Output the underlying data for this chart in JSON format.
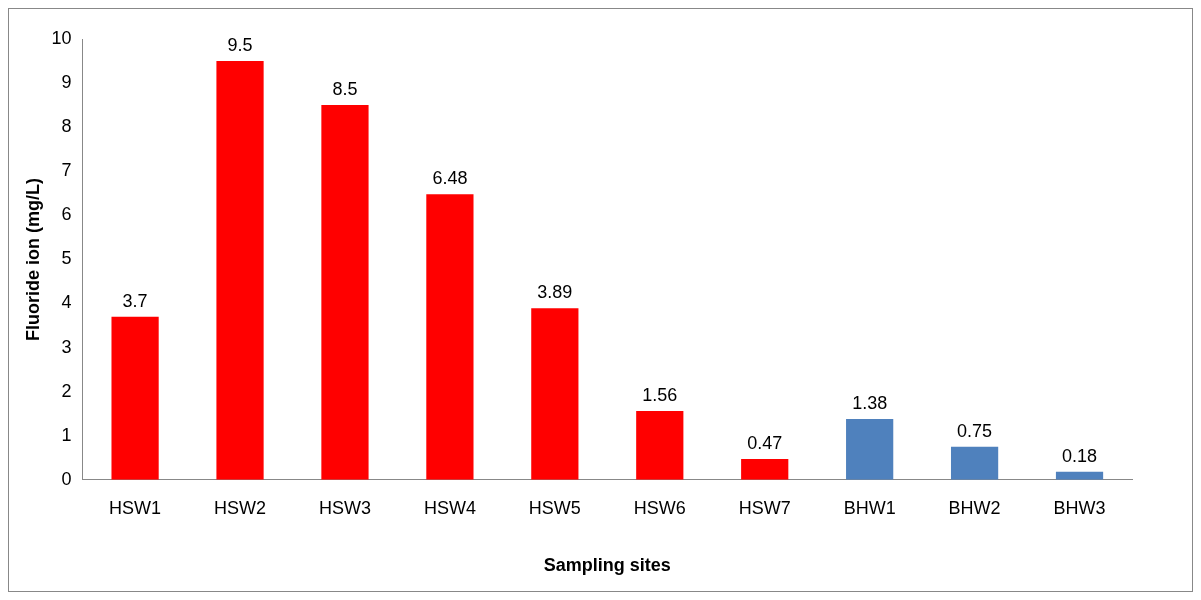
{
  "chart_data": {
    "type": "bar",
    "xlabel": "Sampling sites",
    "ylabel": "Fluoride ion (mg/L)",
    "categories": [
      "HSW1",
      "HSW2",
      "HSW3",
      "HSW4",
      "HSW5",
      "HSW6",
      "HSW7",
      "BHW1",
      "BHW2",
      "BHW3"
    ],
    "values": [
      3.7,
      9.5,
      8.5,
      6.48,
      3.89,
      1.56,
      0.47,
      1.38,
      0.75,
      0.18
    ],
    "colors": [
      "#ff0000",
      "#ff0000",
      "#ff0000",
      "#ff0000",
      "#ff0000",
      "#ff0000",
      "#ff0000",
      "#4f81bd",
      "#4f81bd",
      "#4f81bd"
    ],
    "ylim": [
      0,
      10
    ],
    "yticks": [
      0,
      1,
      2,
      3,
      4,
      5,
      6,
      7,
      8,
      9,
      10
    ],
    "grid": false,
    "legend": false,
    "data_labels": true
  }
}
